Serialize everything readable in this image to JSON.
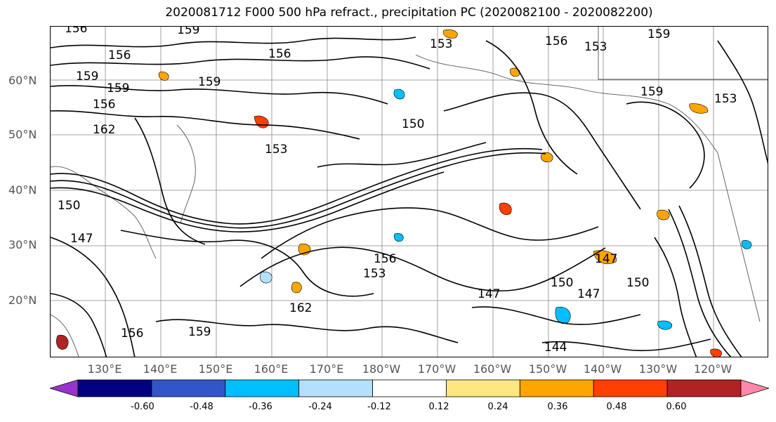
{
  "title": "2020081712 F000 500 hPa refract., precipitation PC (2020082100 - 2020082200)",
  "map": {
    "latitude_labels": [
      "60°N",
      "50°N",
      "40°N",
      "30°N",
      "20°N"
    ],
    "longitude_labels": [
      "130°E",
      "140°E",
      "150°E",
      "160°E",
      "170°E",
      "180°W",
      "170°W",
      "160°W",
      "150°W",
      "140°W",
      "130°W",
      "120°W"
    ],
    "contour_labels": [
      "156",
      "159",
      "156",
      "159",
      "159",
      "156",
      "162",
      "159",
      "147",
      "150",
      "153",
      "156",
      "150",
      "156",
      "153",
      "147",
      "150",
      "147",
      "144",
      "153",
      "156",
      "159",
      "156",
      "159",
      "162",
      "147",
      "150",
      "153",
      "159",
      "153"
    ],
    "contour_color": "#000000",
    "gridline_color": "#888888",
    "coastline_color": "#555555"
  },
  "colorbar": {
    "tick_labels": [
      "-0.60",
      "-0.48",
      "-0.36",
      "-0.24",
      "-0.12",
      "0.12",
      "0.24",
      "0.36",
      "0.48",
      "0.60"
    ],
    "colors": [
      "#9933cc",
      "#000080",
      "#3355cc",
      "#00bfff",
      "#b3e0ff",
      "#ffffff",
      "#ffe680",
      "#ffa500",
      "#ff4000",
      "#b22222",
      "#ff88aa"
    ]
  }
}
